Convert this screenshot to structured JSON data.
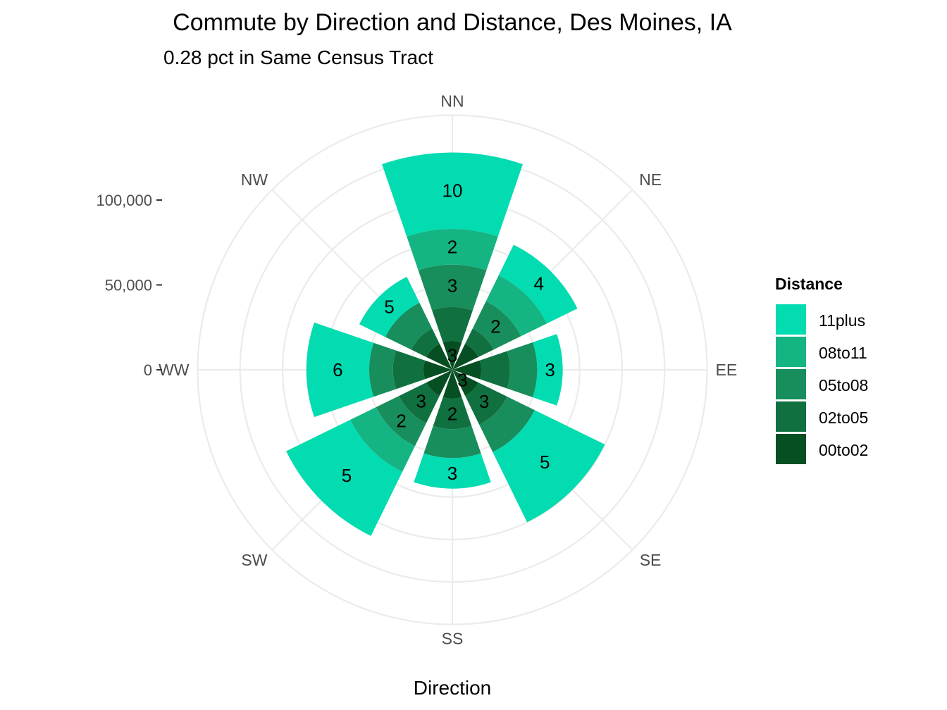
{
  "chart_data": {
    "type": "polar-stacked-bar",
    "title": "Commute by Direction and Distance, Des Moines, IA",
    "subtitle": "0.28 pct in Same Census Tract",
    "xlabel": "Direction",
    "ylabel": "",
    "ylim": [
      0,
      150000
    ],
    "radial_ticks": [
      {
        "value": 0,
        "label": "0"
      },
      {
        "value": 50000,
        "label": "50,000"
      },
      {
        "value": 100000,
        "label": "100,000"
      }
    ],
    "grid": true,
    "legend": {
      "title": "Distance",
      "position": "right"
    },
    "categories": [
      "NN",
      "NE",
      "EE",
      "SE",
      "SS",
      "SW",
      "WW",
      "NW"
    ],
    "series": [
      {
        "name": "00to02",
        "color": "#054f22",
        "values": [
          17000,
          17000,
          17000,
          17000,
          17000,
          17000,
          17000,
          17000
        ]
      },
      {
        "name": "02to05",
        "color": "#107040",
        "values": [
          20000,
          10000,
          17000,
          19000,
          18000,
          18000,
          18000,
          10000
        ]
      },
      {
        "name": "05to08",
        "color": "#188e5c",
        "values": [
          25000,
          18000,
          16000,
          18000,
          17000,
          15000,
          14000,
          17000
        ]
      },
      {
        "name": "08to11",
        "color": "#14b583",
        "values": [
          21000,
          17000,
          0,
          0,
          0,
          17000,
          0,
          0
        ]
      },
      {
        "name": "11plus",
        "color": "#03dbb1",
        "values": [
          45000,
          20000,
          15000,
          46000,
          18000,
          42000,
          37000,
          17000
        ]
      }
    ],
    "bar_labels": [
      {
        "category": "NN",
        "series": "11plus",
        "text": "10"
      },
      {
        "category": "NN",
        "series": "08to11",
        "text": "2"
      },
      {
        "category": "NN",
        "series": "05to08",
        "text": "3"
      },
      {
        "category": "NN",
        "series": "00to02",
        "text": "3"
      },
      {
        "category": "NE",
        "series": "11plus",
        "text": "4"
      },
      {
        "category": "NE",
        "series": "05to08",
        "text": "2"
      },
      {
        "category": "EE",
        "series": "11plus",
        "text": "3"
      },
      {
        "category": "SE",
        "series": "11plus",
        "text": "5"
      },
      {
        "category": "SE",
        "series": "02to05",
        "text": "3"
      },
      {
        "category": "SE",
        "series": "00to02",
        "text": "3"
      },
      {
        "category": "SS",
        "series": "11plus",
        "text": "3"
      },
      {
        "category": "SS",
        "series": "02to05",
        "text": "2"
      },
      {
        "category": "SW",
        "series": "11plus",
        "text": "5"
      },
      {
        "category": "SW",
        "series": "05to08",
        "text": "2"
      },
      {
        "category": "SW",
        "series": "02to05",
        "text": "3"
      },
      {
        "category": "WW",
        "series": "11plus",
        "text": "6"
      },
      {
        "category": "NW",
        "series": "11plus",
        "text": "5"
      }
    ]
  }
}
